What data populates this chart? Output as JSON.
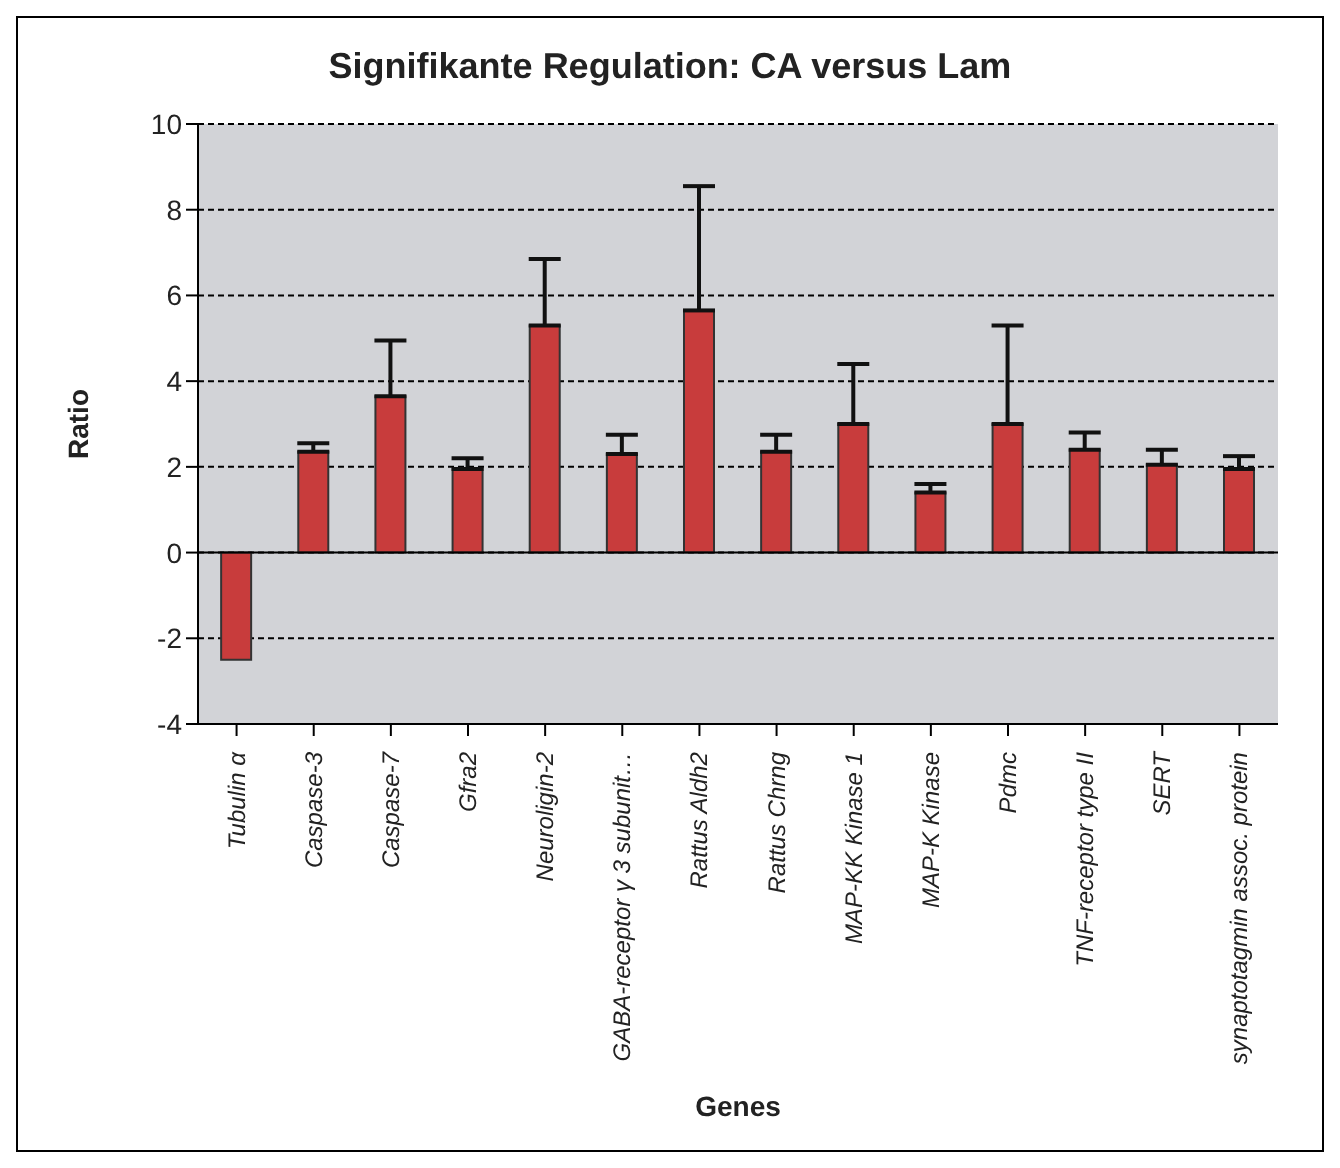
{
  "chart_data": {
    "type": "bar",
    "title": "Signifikante Regulation: CA versus Lam",
    "xlabel": "Genes",
    "ylabel": "Ratio",
    "categories": [
      "Tubulin α",
      "Caspase-3",
      "Caspase-7",
      "Gfra2",
      "Neuroligin-2",
      "GABA-receptor γ 3 subunit…",
      "Rattus Aldh2",
      "Rattus Chrng",
      "MAP-KK Kinase 1",
      "MAP-K Kinase",
      "Pdmc",
      "TNF-receptor type II",
      "SERT",
      "synaptotagmin assoc. protein"
    ],
    "values": [
      -2.5,
      2.35,
      3.65,
      1.95,
      5.3,
      2.3,
      5.65,
      2.35,
      3.0,
      1.4,
      3.0,
      2.4,
      2.05,
      1.95
    ],
    "errors": [
      null,
      [
        2.35,
        2.55
      ],
      [
        3.65,
        4.95
      ],
      [
        1.95,
        2.2
      ],
      [
        5.3,
        6.85
      ],
      [
        2.3,
        2.75
      ],
      [
        5.65,
        8.55
      ],
      [
        2.35,
        2.75
      ],
      [
        3.0,
        4.4
      ],
      [
        1.4,
        1.6
      ],
      [
        3.0,
        5.3
      ],
      [
        2.4,
        2.8
      ],
      [
        2.05,
        2.4
      ],
      [
        1.95,
        2.25
      ]
    ],
    "color": "#c83c3c",
    "ylim": [
      -4,
      10
    ],
    "yticks": [
      -4,
      -2,
      0,
      2,
      4,
      6,
      8,
      10
    ],
    "grid": "y"
  }
}
